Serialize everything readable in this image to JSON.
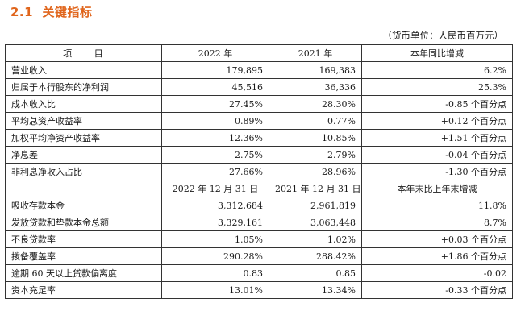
{
  "section": {
    "number": "2.1",
    "title": "关键指标"
  },
  "unit_note": "（货币单位：人民币百万元）",
  "table1": {
    "headers": [
      "项  目",
      "2022 年",
      "2021 年",
      "本年同比增减"
    ],
    "rows": [
      [
        "营业收入",
        "179,895",
        "169,383",
        "6.2%"
      ],
      [
        "归属于本行股东的净利润",
        "45,516",
        "36,336",
        "25.3%"
      ],
      [
        "成本收入比",
        "27.45%",
        "28.30%",
        "-0.85 个百分点"
      ],
      [
        "平均总资产收益率",
        "0.89%",
        "0.77%",
        "+0.12 个百分点"
      ],
      [
        "加权平均净资产收益率",
        "12.36%",
        "10.85%",
        "+1.51 个百分点"
      ],
      [
        "净息差",
        "2.75%",
        "2.79%",
        "-0.04 个百分点"
      ],
      [
        "非利息净收入占比",
        "27.66%",
        "28.96%",
        "-1.30 个百分点"
      ]
    ]
  },
  "table2": {
    "headers": [
      "",
      "2022 年 12 月 31 日",
      "2021 年 12 月 31 日",
      "本年末比上年末增减"
    ],
    "rows": [
      [
        "吸收存款本金",
        "3,312,684",
        "2,961,819",
        "11.8%"
      ],
      [
        "发放贷款和垫款本金总额",
        "3,329,161",
        "3,063,448",
        "8.7%"
      ],
      [
        "不良贷款率",
        "1.05%",
        "1.02%",
        "+0.03 个百分点"
      ],
      [
        "拨备覆盖率",
        "290.28%",
        "288.42%",
        "+1.86 个百分点"
      ],
      [
        "逾期 60 天以上贷款偏离度",
        "0.83",
        "0.85",
        "-0.02"
      ],
      [
        "资本充足率",
        "13.01%",
        "13.34%",
        "-0.33 个百分点"
      ]
    ]
  }
}
